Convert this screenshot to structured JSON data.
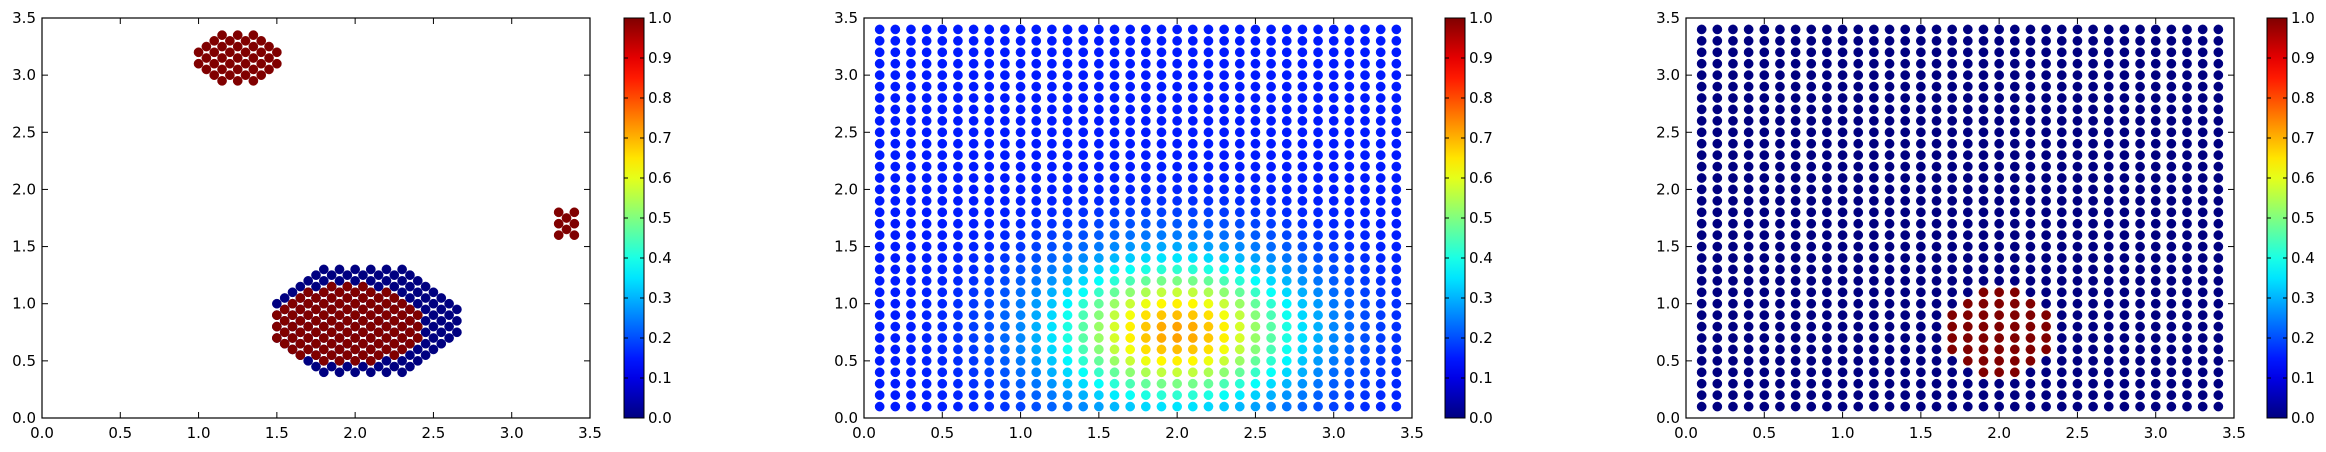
{
  "chart_data": [
    {
      "type": "scatter",
      "title": "",
      "xlabel": "",
      "ylabel": "",
      "xlim": [
        0.0,
        3.5
      ],
      "ylim": [
        0.0,
        3.5
      ],
      "xticks": [
        "0.0",
        "0.5",
        "1.0",
        "1.5",
        "2.0",
        "2.5",
        "3.0",
        "3.5"
      ],
      "yticks": [
        "0.0",
        "0.5",
        "1.0",
        "1.5",
        "2.0",
        "2.5",
        "3.0",
        "3.5"
      ],
      "grid": false,
      "colormap": "jet",
      "colorbar": {
        "range": [
          0.0,
          1.0
        ],
        "ticks": [
          "0.0",
          "0.1",
          "0.2",
          "0.3",
          "0.4",
          "0.5",
          "0.6",
          "0.7",
          "0.8",
          "0.9",
          "1.0"
        ]
      },
      "point_spacing": 0.1,
      "clusters": [
        {
          "value": 1.0,
          "shape": "ellipse",
          "cx": 1.25,
          "cy": 3.15,
          "rx": 0.3,
          "ry": 0.25
        },
        {
          "value": 1.0,
          "shape": "ellipse",
          "cx": 3.33,
          "cy": 1.7,
          "rx": 0.1,
          "ry": 0.15
        },
        {
          "value": 0.0,
          "shape": "ellipse",
          "cx": 2.05,
          "cy": 0.85,
          "rx": 0.62,
          "ry": 0.5
        },
        {
          "value": 1.0,
          "shape": "ellipse",
          "cx": 1.95,
          "cy": 0.82,
          "rx": 0.5,
          "ry": 0.35
        }
      ]
    },
    {
      "type": "scatter",
      "title": "",
      "xlabel": "",
      "ylabel": "",
      "xlim": [
        0.0,
        3.5
      ],
      "ylim": [
        0.0,
        3.5
      ],
      "xticks": [
        "0.0",
        "0.5",
        "1.0",
        "1.5",
        "2.0",
        "2.5",
        "3.0",
        "3.5"
      ],
      "yticks": [
        "0.0",
        "0.5",
        "1.0",
        "1.5",
        "2.0",
        "2.5",
        "3.0",
        "3.5"
      ],
      "grid": false,
      "colormap": "jet",
      "colorbar": {
        "range": [
          0.0,
          1.0
        ],
        "ticks": [
          "0.0",
          "0.1",
          "0.2",
          "0.3",
          "0.4",
          "0.5",
          "0.6",
          "0.7",
          "0.8",
          "0.9",
          "1.0"
        ]
      },
      "point_grid": {
        "x_start": 0.1,
        "x_end": 3.4,
        "y_start": 0.1,
        "y_end": 3.4,
        "step": 0.1
      },
      "value_field": {
        "kind": "gaussian",
        "peak_x": 2.0,
        "peak_y": 0.75,
        "peak_value": 0.72,
        "sigma_x": 0.55,
        "sigma_y": 0.45,
        "base_value": 0.15
      }
    },
    {
      "type": "scatter",
      "title": "",
      "xlabel": "",
      "ylabel": "",
      "xlim": [
        0.0,
        3.5
      ],
      "ylim": [
        0.0,
        3.5
      ],
      "xticks": [
        "0.0",
        "0.5",
        "1.0",
        "1.5",
        "2.0",
        "2.5",
        "3.0",
        "3.5"
      ],
      "yticks": [
        "0.0",
        "0.5",
        "1.0",
        "1.5",
        "2.0",
        "2.5",
        "3.0",
        "3.5"
      ],
      "grid": false,
      "colormap": "jet",
      "colorbar": {
        "range": [
          0.0,
          1.0
        ],
        "ticks": [
          "0.0",
          "0.1",
          "0.2",
          "0.3",
          "0.4",
          "0.5",
          "0.6",
          "0.7",
          "0.8",
          "0.9",
          "1.0"
        ]
      },
      "point_grid": {
        "x_start": 0.1,
        "x_end": 3.4,
        "y_start": 0.1,
        "y_end": 3.4,
        "step": 0.1
      },
      "value_field": {
        "kind": "disc",
        "cx": 2.0,
        "cy": 0.75,
        "radius": 0.38,
        "inside_value": 1.0,
        "outside_value": 0.0
      }
    }
  ]
}
